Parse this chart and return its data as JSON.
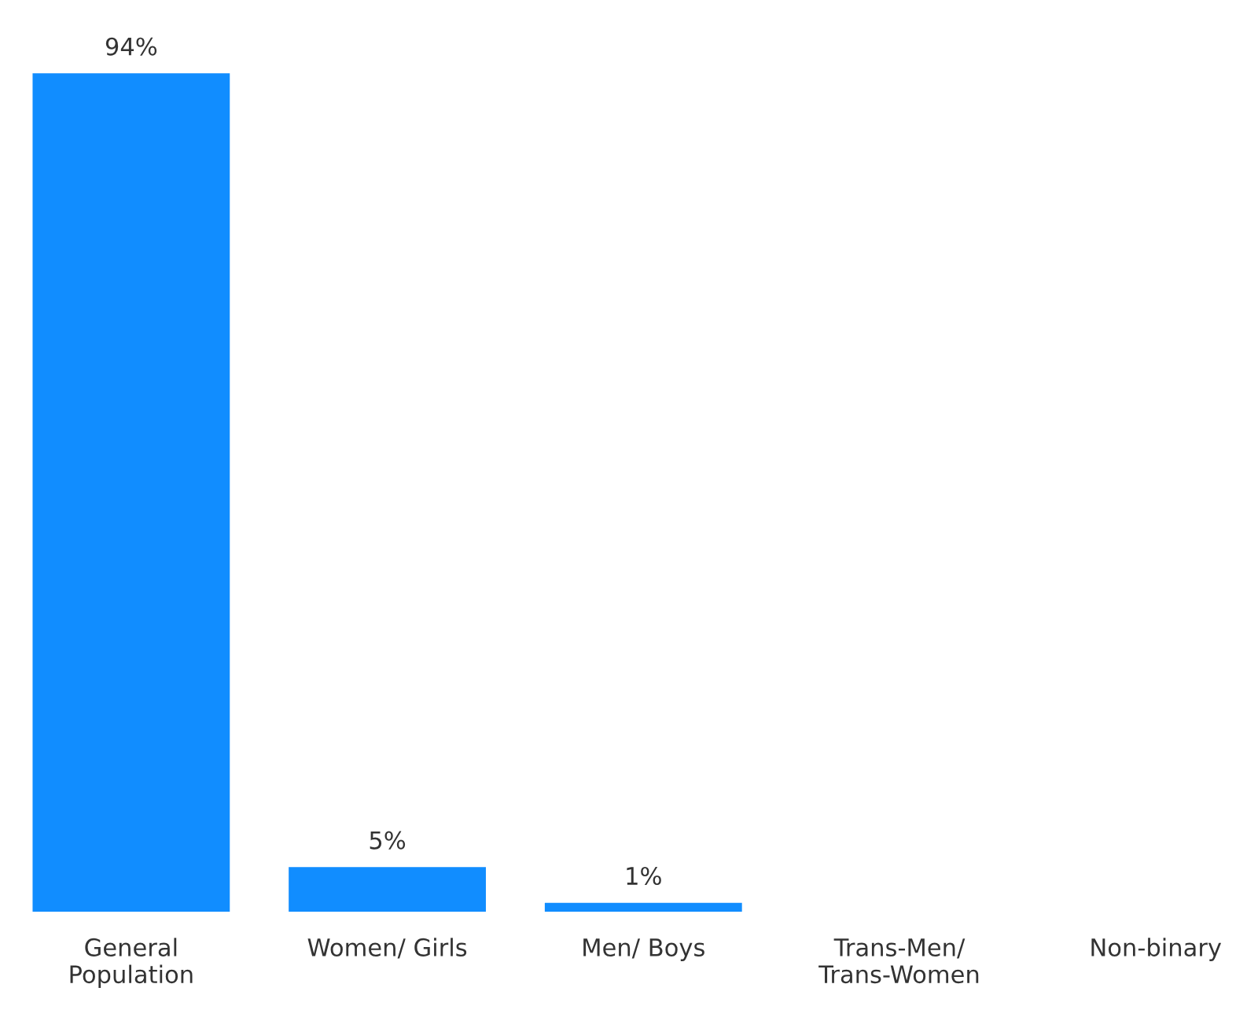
{
  "chart_data": {
    "type": "bar",
    "categories": [
      "General\nPopulation",
      "Women/ Girls",
      "Men/ Boys",
      "Trans-Men/\nTrans-Women",
      "Non-binary"
    ],
    "values": [
      94,
      5,
      1,
      null,
      null
    ],
    "value_labels": [
      "94%",
      "5%",
      "1%",
      null,
      null
    ],
    "color": "#118dff",
    "tick_labels": "x",
    "grid": false,
    "legend": false
  }
}
